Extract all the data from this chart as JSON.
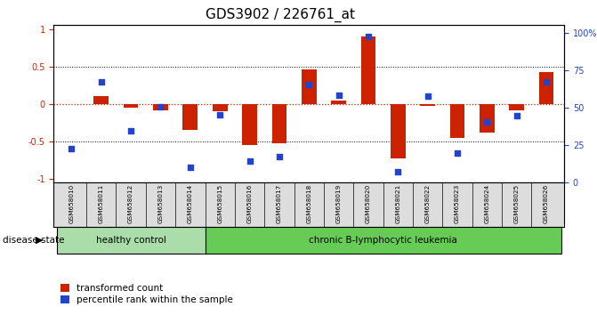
{
  "title": "GDS3902 / 226761_at",
  "samples": [
    "GSM658010",
    "GSM658011",
    "GSM658012",
    "GSM658013",
    "GSM658014",
    "GSM658015",
    "GSM658016",
    "GSM658017",
    "GSM658018",
    "GSM658019",
    "GSM658020",
    "GSM658021",
    "GSM658022",
    "GSM658023",
    "GSM658024",
    "GSM658025",
    "GSM658026"
  ],
  "bar_values": [
    0.0,
    0.1,
    -0.05,
    -0.08,
    -0.35,
    -0.1,
    -0.55,
    -0.52,
    0.46,
    0.05,
    0.9,
    -0.72,
    -0.02,
    -0.45,
    -0.38,
    -0.08,
    0.42
  ],
  "blue_values": [
    20,
    65,
    32,
    48,
    8,
    43,
    12,
    15,
    63,
    56,
    95,
    5,
    55,
    17,
    38,
    42,
    65
  ],
  "healthy_control_count": 5,
  "healthy_color": "#aaddaa",
  "cll_color": "#66cc55",
  "group_labels": [
    "healthy control",
    "chronic B-lymphocytic leukemia"
  ],
  "bar_color": "#cc2200",
  "blue_color": "#2244cc",
  "yticks_left": [
    -1,
    -0.5,
    0,
    0.5,
    1
  ],
  "yticks_right": [
    0,
    25,
    50,
    75,
    100
  ],
  "ylim": [
    -1.05,
    1.05
  ],
  "right_ylim": [
    0,
    105
  ],
  "legend_items": [
    "transformed count",
    "percentile rank within the sample"
  ],
  "disease_state_label": "disease state",
  "background_color": "#ffffff",
  "bar_width": 0.5,
  "title_fontsize": 11,
  "tick_fontsize": 7,
  "label_fontsize": 8
}
